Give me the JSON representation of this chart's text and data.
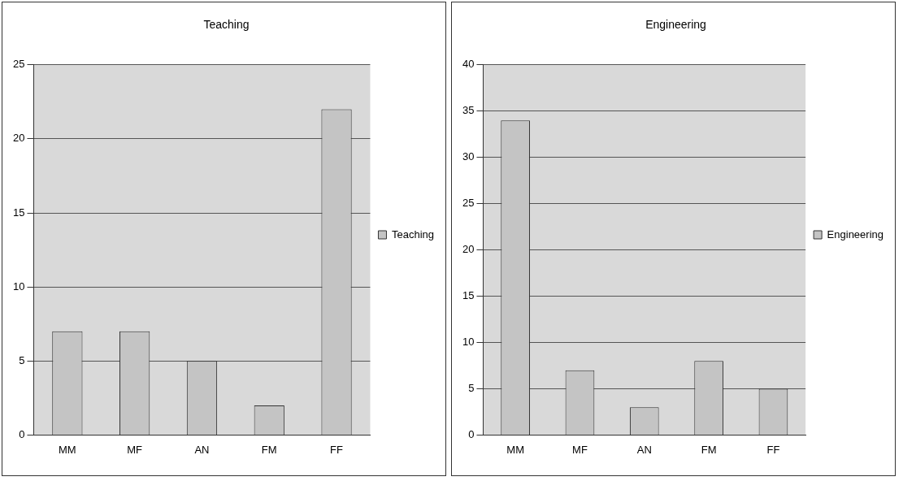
{
  "chart_data": [
    {
      "type": "bar",
      "title": "Teaching",
      "categories": [
        "MM",
        "MF",
        "AN",
        "FM",
        "FF"
      ],
      "series": [
        {
          "name": "Teaching",
          "color": "#c4c4c4",
          "values": [
            7,
            7,
            5,
            2,
            22
          ]
        }
      ],
      "ylim": [
        0,
        25
      ],
      "yticks": [
        0,
        5,
        10,
        15,
        20,
        25
      ],
      "grid": "y",
      "legend": "right"
    },
    {
      "type": "bar",
      "title": "Engineering",
      "categories": [
        "MM",
        "MF",
        "AN",
        "FM",
        "FF"
      ],
      "series": [
        {
          "name": "Engineering",
          "color": "#c4c4c4",
          "values": [
            34,
            7,
            3,
            8,
            5
          ]
        }
      ],
      "ylim": [
        0,
        40
      ],
      "yticks": [
        0,
        5,
        10,
        15,
        20,
        25,
        30,
        35,
        40
      ],
      "grid": "y",
      "legend": "right"
    }
  ]
}
